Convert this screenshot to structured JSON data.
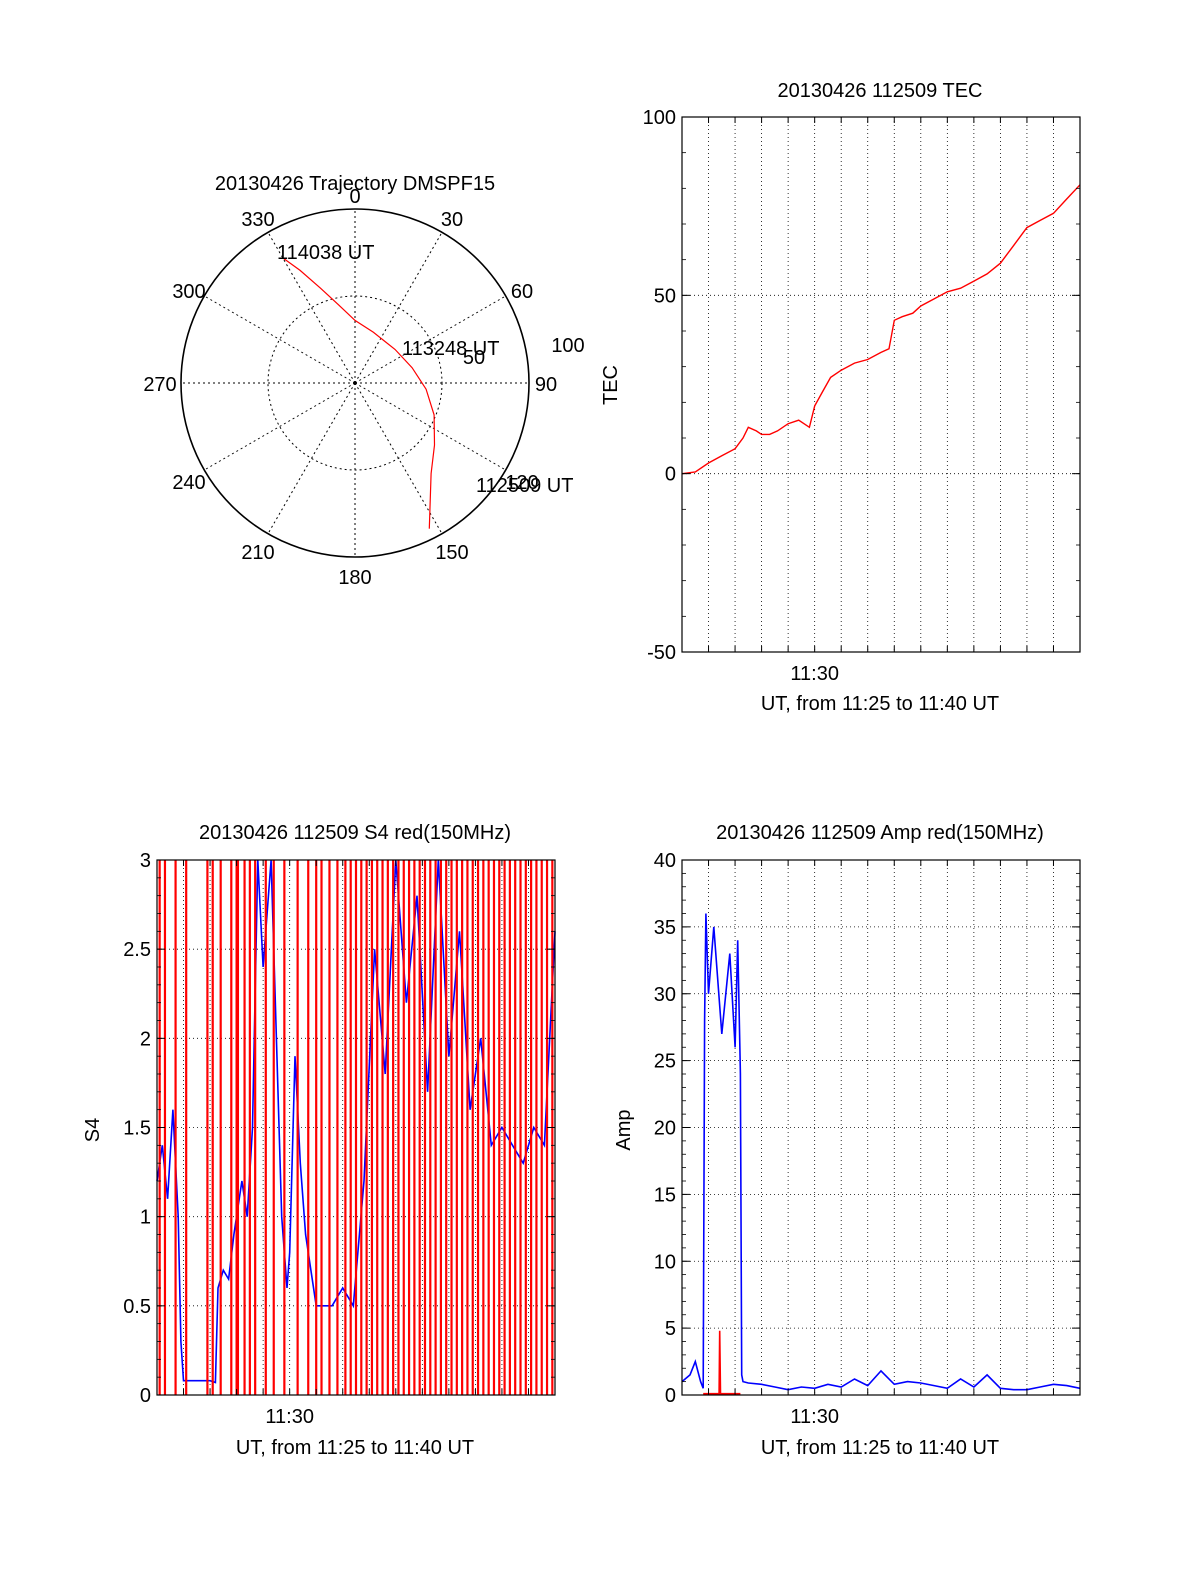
{
  "chart_data": [
    {
      "type": "polar",
      "title": "20130426 Trajectory DMSPF15",
      "azimuth_labels": [
        "0",
        "30",
        "60",
        "90",
        "120",
        "150",
        "180",
        "210",
        "240",
        "270",
        "300",
        "330"
      ],
      "radial_labels": [
        "50",
        "100"
      ],
      "rlim": [
        0,
        100
      ],
      "grid": true,
      "trajectory": {
        "color": "#ff0000",
        "points": [
          {
            "az": 153,
            "r": 94
          },
          {
            "az": 140,
            "r": 68
          },
          {
            "az": 128,
            "r": 58
          },
          {
            "az": 112,
            "r": 49
          },
          {
            "az": 95,
            "r": 41
          },
          {
            "az": 75,
            "r": 34
          },
          {
            "az": 50,
            "r": 30
          },
          {
            "az": 20,
            "r": 31
          },
          {
            "az": 0,
            "r": 36
          },
          {
            "az": -12,
            "r": 46
          },
          {
            "az": -20,
            "r": 58
          },
          {
            "az": -26,
            "r": 72
          },
          {
            "az": -30,
            "r": 83
          }
        ]
      },
      "annotations": [
        {
          "text": "114038 UT"
        },
        {
          "text": "113248 UT"
        },
        {
          "text": "112509 UT"
        }
      ]
    },
    {
      "type": "line",
      "title": "20130426 112509 TEC",
      "xlabel": "UT, from 11:25 to 11:40 UT",
      "ylabel": "TEC",
      "xlim": [
        0,
        15
      ],
      "ylim": [
        -50,
        100
      ],
      "xticks": [
        {
          "x": 5,
          "label": "11:30"
        }
      ],
      "yticks": [
        -50,
        0,
        50,
        100
      ],
      "grid": true,
      "series": [
        {
          "color": "#ff0000",
          "x": [
            0,
            0.5,
            1,
            1.5,
            2,
            2.3,
            2.5,
            2.8,
            3,
            3.3,
            3.6,
            4,
            4.4,
            4.8,
            5,
            5.3,
            5.6,
            6,
            6.5,
            7,
            7.5,
            7.8,
            8,
            8.3,
            8.7,
            9,
            9.5,
            10,
            10.5,
            11,
            11.5,
            12,
            12.5,
            13,
            13.5,
            14,
            14.5,
            15
          ],
          "values": [
            0,
            0.5,
            3,
            5,
            7,
            10,
            13,
            12,
            11,
            11,
            12,
            14,
            15,
            13,
            19,
            23,
            27,
            29,
            31,
            32,
            34,
            35,
            43,
            44,
            45,
            47,
            49,
            51,
            52,
            54,
            56,
            59,
            64,
            69,
            71,
            73,
            77,
            81
          ]
        }
      ]
    },
    {
      "type": "line",
      "title": "20130426 112509 S4 red(150MHz)",
      "xlabel": "UT, from 11:25 to 11:40 UT",
      "ylabel": "S4",
      "xlim": [
        0,
        15
      ],
      "ylim": [
        0,
        3
      ],
      "xticks": [
        {
          "x": 5,
          "label": "11:30"
        }
      ],
      "yticks": [
        "0",
        "0.5",
        "1",
        "1.5",
        "2",
        "2.5",
        "3"
      ],
      "grid": true,
      "series": [
        {
          "color": "#0000ff",
          "x": [
            0,
            0.2,
            0.4,
            0.6,
            0.8,
            0.9,
            1.0,
            1.5,
            2.0,
            2.2,
            2.3,
            2.5,
            2.7,
            2.9,
            3.2,
            3.4,
            3.6,
            3.8,
            4.0,
            4.3,
            4.5,
            4.7,
            4.9,
            5.0,
            5.2,
            5.4,
            5.6,
            5.8,
            6.0,
            6.3,
            6.6,
            7.0,
            7.4,
            7.8,
            8.2,
            8.6,
            9.0,
            9.4,
            9.8,
            10.2,
            10.6,
            11.0,
            11.4,
            11.8,
            12.2,
            12.6,
            13.0,
            13.4,
            13.8,
            14.2,
            14.6,
            15.0
          ],
          "values": [
            1.2,
            1.4,
            1.1,
            1.6,
            1.0,
            0.3,
            0.08,
            0.08,
            0.08,
            0.07,
            0.6,
            0.7,
            0.65,
            0.9,
            1.2,
            1.0,
            1.5,
            3.0,
            2.4,
            3.0,
            2.0,
            1.0,
            0.6,
            0.8,
            1.9,
            1.3,
            0.9,
            0.7,
            0.5,
            0.5,
            0.5,
            0.6,
            0.5,
            1.2,
            2.5,
            1.8,
            3.0,
            2.2,
            2.8,
            1.7,
            3.0,
            1.9,
            2.6,
            1.6,
            2.0,
            1.4,
            1.5,
            1.4,
            1.3,
            1.5,
            1.4,
            2.6
          ]
        },
        {
          "color": "#ff0000",
          "bars_at_x": [
            0.1,
            0.3,
            0.7,
            1.1,
            1.9,
            2.1,
            2.4,
            2.8,
            3.0,
            3.05,
            3.3,
            3.5,
            3.7,
            4.1,
            4.4,
            4.8,
            5.3,
            5.7,
            6.0,
            6.2,
            6.5,
            6.8,
            7.1,
            7.3,
            7.5,
            7.7,
            7.9,
            8.1,
            8.3,
            8.5,
            8.7,
            8.9,
            9.1,
            9.3,
            9.5,
            9.7,
            9.9,
            10.1,
            10.3,
            10.5,
            10.7,
            10.9,
            11.1,
            11.3,
            11.5,
            11.7,
            11.9,
            12.1,
            12.3,
            12.5,
            12.7,
            12.9,
            13.1,
            13.3,
            13.5,
            13.7,
            13.9,
            14.1,
            14.3,
            14.5,
            14.7,
            14.9
          ],
          "bar_value": 3
        }
      ]
    },
    {
      "type": "line",
      "title": "20130426 112509 Amp red(150MHz)",
      "xlabel": "UT, from 11:25 to 11:40 UT",
      "ylabel": "Amp",
      "xlim": [
        0,
        15
      ],
      "ylim": [
        0,
        40
      ],
      "xticks": [
        {
          "x": 5,
          "label": "11:30"
        }
      ],
      "yticks": [
        "0",
        "5",
        "10",
        "15",
        "20",
        "25",
        "30",
        "35",
        "40"
      ],
      "grid": true,
      "series": [
        {
          "color": "#0000ff",
          "x": [
            0,
            0.3,
            0.5,
            0.7,
            0.8,
            0.85,
            0.9,
            1.0,
            1.2,
            1.5,
            1.8,
            2.0,
            2.1,
            2.2,
            2.25,
            2.3,
            2.5,
            3.0,
            3.5,
            4.0,
            4.5,
            5.0,
            5.5,
            6.0,
            6.5,
            7.0,
            7.5,
            8.0,
            8.5,
            9.0,
            9.5,
            10.0,
            10.5,
            11.0,
            11.5,
            12.0,
            12.5,
            13.0,
            13.5,
            14.0,
            14.5,
            15.0
          ],
          "values": [
            1.0,
            1.5,
            2.5,
            1.0,
            0.5,
            28,
            36,
            30,
            35,
            27,
            33,
            26,
            34,
            24,
            1.5,
            1.0,
            0.9,
            0.8,
            0.6,
            0.4,
            0.6,
            0.5,
            0.8,
            0.6,
            1.2,
            0.7,
            1.8,
            0.8,
            1.0,
            0.9,
            0.7,
            0.5,
            1.2,
            0.6,
            1.5,
            0.5,
            0.4,
            0.4,
            0.6,
            0.8,
            0.7,
            0.5
          ]
        },
        {
          "color": "#ff0000",
          "x": [
            0.8,
            1.4,
            1.42,
            1.45,
            2.2
          ],
          "values": [
            0.1,
            0.1,
            4.8,
            0.1,
            0.1
          ]
        }
      ]
    }
  ]
}
